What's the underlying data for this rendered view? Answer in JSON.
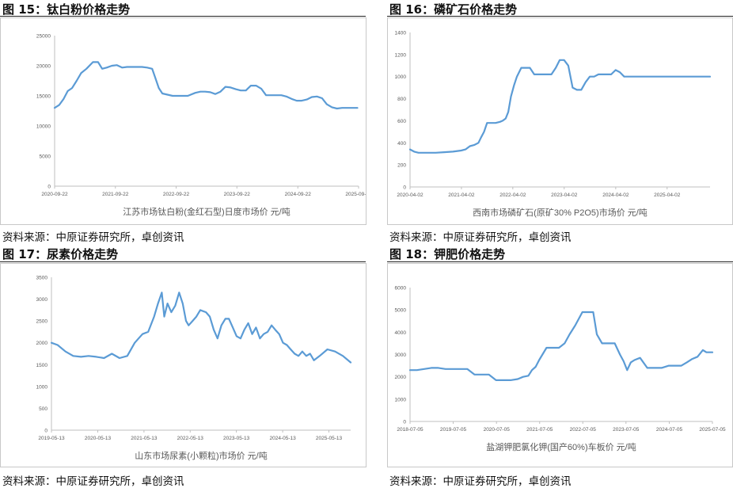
{
  "source_label": "资料来源：中原证券研究所，卓创资讯",
  "line_color": "#5b9bd5",
  "panels": [
    {
      "figure_title": "图 15：钛白粉价格走势",
      "chart_data": {
        "type": "line",
        "title": "",
        "xlabel": "",
        "ylabel": "",
        "ylim": [
          0,
          25000
        ],
        "yticks": [
          0,
          5000,
          10000,
          15000,
          20000,
          25000
        ],
        "xlim": [
          "2020-09-22",
          "2025-09-22"
        ],
        "xticks": [
          "2020-09-22",
          "2021-09-22",
          "2022-09-22",
          "2023-09-22",
          "2024-09-22",
          "2025-09-22"
        ],
        "grid": false,
        "legend": "bottom",
        "series": [
          {
            "name": "江苏市场钛白粉(金红石型)日度市场价 元/吨",
            "x": [
              "2020-09-22",
              "2020-10-20",
              "2020-11-15",
              "2020-12-10",
              "2021-01-05",
              "2021-02-01",
              "2021-03-01",
              "2021-04-01",
              "2021-05-10",
              "2021-06-10",
              "2021-07-05",
              "2021-08-01",
              "2021-09-01",
              "2021-10-01",
              "2021-11-01",
              "2021-12-01",
              "2022-01-01",
              "2022-02-01",
              "2022-03-01",
              "2022-04-01",
              "2022-05-01",
              "2022-05-20",
              "2022-06-10",
              "2022-07-01",
              "2022-08-01",
              "2022-09-01",
              "2022-10-01",
              "2022-11-01",
              "2022-12-01",
              "2023-01-15",
              "2023-02-15",
              "2023-03-15",
              "2023-04-15",
              "2023-05-15",
              "2023-06-15",
              "2023-07-15",
              "2023-08-15",
              "2023-09-15",
              "2023-10-15",
              "2023-11-15",
              "2023-12-15",
              "2024-01-15",
              "2024-02-15",
              "2024-03-15",
              "2024-04-15",
              "2024-05-15",
              "2024-06-15",
              "2024-07-15",
              "2024-08-15",
              "2024-09-15",
              "2024-10-15",
              "2024-11-15",
              "2024-12-15",
              "2025-01-15",
              "2025-02-15",
              "2025-03-15",
              "2025-04-15",
              "2025-05-15",
              "2025-06-15",
              "2025-07-15",
              "2025-08-15",
              "2025-09-15"
            ],
            "values": [
              13000,
              13500,
              14500,
              15800,
              16300,
              17500,
              18800,
              19500,
              20600,
              20600,
              19500,
              19700,
              20000,
              20100,
              19700,
              19800,
              19800,
              19800,
              19800,
              19700,
              19500,
              18000,
              16300,
              15400,
              15200,
              15000,
              15000,
              15000,
              15000,
              15500,
              15700,
              15700,
              15600,
              15300,
              15700,
              16500,
              16400,
              16100,
              15900,
              15900,
              16700,
              16700,
              16200,
              15100,
              15100,
              15100,
              15100,
              14900,
              14500,
              14200,
              14200,
              14400,
              14800,
              14900,
              14600,
              13600,
              13100,
              12900,
              13000,
              13000,
              13000,
              13000
            ]
          }
        ]
      }
    },
    {
      "figure_title": "图 16：磷矿石价格走势",
      "chart_data": {
        "type": "line",
        "title": "",
        "xlabel": "",
        "ylabel": "",
        "ylim": [
          0,
          1400
        ],
        "yticks": [
          0,
          200,
          400,
          600,
          800,
          1000,
          1200,
          1400
        ],
        "xlim": [
          "2020-04-02",
          "2026-02-01"
        ],
        "xticks": [
          "2020-04-02",
          "2021-04-02",
          "2022-04-02",
          "2023-04-02",
          "2024-04-02",
          "2025-04-02"
        ],
        "grid": false,
        "legend": "bottom",
        "series": [
          {
            "name": "西南市场磷矿石(原矿30% P2O5)市场价 元/吨",
            "x": [
              "2020-04-02",
              "2020-05-01",
              "2020-06-01",
              "2020-08-01",
              "2020-10-01",
              "2020-12-01",
              "2021-02-01",
              "2021-04-01",
              "2021-05-01",
              "2021-06-01",
              "2021-07-01",
              "2021-08-01",
              "2021-08-20",
              "2021-09-10",
              "2021-10-01",
              "2021-11-01",
              "2021-12-01",
              "2022-01-01",
              "2022-01-20",
              "2022-02-10",
              "2022-03-01",
              "2022-03-20",
              "2022-04-10",
              "2022-05-01",
              "2022-06-01",
              "2022-07-01",
              "2022-08-01",
              "2022-09-01",
              "2022-10-01",
              "2022-11-01",
              "2022-12-01",
              "2023-01-01",
              "2023-02-01",
              "2023-03-01",
              "2023-04-01",
              "2023-05-01",
              "2023-06-01",
              "2023-07-01",
              "2023-08-01",
              "2023-09-01",
              "2023-10-01",
              "2023-11-01",
              "2023-12-01",
              "2024-01-01",
              "2024-02-01",
              "2024-03-01",
              "2024-04-01",
              "2024-05-01",
              "2024-06-01",
              "2025-01-01",
              "2025-06-01",
              "2026-02-01"
            ],
            "values": [
              340,
              320,
              310,
              310,
              310,
              315,
              320,
              330,
              340,
              370,
              380,
              400,
              450,
              500,
              580,
              580,
              580,
              590,
              600,
              620,
              680,
              820,
              920,
              1000,
              1080,
              1080,
              1080,
              1020,
              1020,
              1020,
              1020,
              1020,
              1080,
              1150,
              1150,
              1100,
              900,
              880,
              880,
              950,
              1000,
              1000,
              1020,
              1020,
              1020,
              1020,
              1060,
              1040,
              1000,
              1000,
              1000,
              1000
            ]
          }
        ]
      }
    },
    {
      "figure_title": "图 17：尿素价格走势",
      "chart_data": {
        "type": "line",
        "title": "",
        "xlabel": "",
        "ylabel": "",
        "ylim": [
          0,
          3500
        ],
        "yticks": [
          0,
          500,
          1000,
          1500,
          2000,
          2500,
          3000,
          3500
        ],
        "xlim": [
          "2019-05-13",
          "2025-11-01"
        ],
        "xticks": [
          "2019-05-13",
          "2020-05-13",
          "2021-05-13",
          "2022-05-13",
          "2023-05-13",
          "2024-05-13",
          "2025-05-13"
        ],
        "grid": false,
        "legend": "bottom",
        "series": [
          {
            "name": "山东市场尿素(小颗粒)市场价 元/吨",
            "x": [
              "2019-05-13",
              "2019-07-01",
              "2019-09-01",
              "2019-11-01",
              "2020-01-01",
              "2020-03-01",
              "2020-05-01",
              "2020-07-01",
              "2020-09-01",
              "2020-11-01",
              "2021-01-01",
              "2021-03-01",
              "2021-05-01",
              "2021-06-15",
              "2021-08-01",
              "2021-09-01",
              "2021-10-01",
              "2021-10-20",
              "2021-11-15",
              "2021-12-15",
              "2022-01-15",
              "2022-02-15",
              "2022-03-15",
              "2022-04-10",
              "2022-05-01",
              "2022-06-01",
              "2022-07-01",
              "2022-08-01",
              "2022-09-15",
              "2022-10-15",
              "2022-11-15",
              "2022-12-15",
              "2023-01-15",
              "2023-02-15",
              "2023-03-15",
              "2023-04-15",
              "2023-05-15",
              "2023-06-15",
              "2023-07-15",
              "2023-08-15",
              "2023-09-15",
              "2023-10-15",
              "2023-11-15",
              "2023-12-15",
              "2024-01-15",
              "2024-02-15",
              "2024-03-15",
              "2024-04-15",
              "2024-05-15",
              "2024-06-15",
              "2024-07-15",
              "2024-08-15",
              "2024-09-15",
              "2024-10-15",
              "2024-11-15",
              "2024-12-15",
              "2025-01-15",
              "2025-03-01",
              "2025-05-01",
              "2025-07-01",
              "2025-09-01",
              "2025-11-01"
            ],
            "values": [
              2000,
              1950,
              1800,
              1700,
              1680,
              1700,
              1680,
              1650,
              1750,
              1650,
              1700,
              2000,
              2200,
              2250,
              2600,
              2900,
              3150,
              2600,
              2900,
              2700,
              2850,
              3150,
              2900,
              2500,
              2400,
              2500,
              2600,
              2750,
              2700,
              2600,
              2300,
              2100,
              2400,
              2550,
              2550,
              2350,
              2150,
              2100,
              2300,
              2450,
              2200,
              2350,
              2100,
              2200,
              2250,
              2400,
              2300,
              2200,
              2000,
              1950,
              1850,
              1750,
              1700,
              1800,
              1700,
              1750,
              1600,
              1700,
              1850,
              1800,
              1700,
              1550
            ]
          }
        ]
      }
    },
    {
      "figure_title": "图 18：钾肥价格走势",
      "chart_data": {
        "type": "line",
        "title": "",
        "xlabel": "",
        "ylabel": "",
        "ylim": [
          0,
          6000
        ],
        "yticks": [
          0,
          1000,
          2000,
          3000,
          4000,
          5000,
          6000
        ],
        "xlim": [
          "2018-07-05",
          "2025-07-05"
        ],
        "xticks": [
          "2018-07-05",
          "2019-07-05",
          "2020-07-05",
          "2021-07-05",
          "2022-07-05",
          "2023-07-05",
          "2024-07-05",
          "2025-07-05"
        ],
        "grid": false,
        "legend": "bottom",
        "series": [
          {
            "name": "盐湖钾肥氯化钾(国产60%)车板价 元/吨",
            "x": [
              "2018-07-05",
              "2018-09-01",
              "2018-11-01",
              "2019-01-01",
              "2019-03-01",
              "2019-05-01",
              "2019-07-01",
              "2019-09-01",
              "2019-11-01",
              "2020-01-01",
              "2020-03-01",
              "2020-05-01",
              "2020-07-01",
              "2020-09-01",
              "2020-11-01",
              "2021-01-01",
              "2021-02-15",
              "2021-04-01",
              "2021-05-01",
              "2021-06-01",
              "2021-07-01",
              "2021-09-01",
              "2021-11-01",
              "2021-12-15",
              "2022-02-01",
              "2022-03-15",
              "2022-05-01",
              "2022-07-01",
              "2022-09-01",
              "2022-10-01",
              "2022-11-01",
              "2022-12-15",
              "2023-02-01",
              "2023-04-01",
              "2023-05-15",
              "2023-06-15",
              "2023-07-15",
              "2023-08-15",
              "2023-09-15",
              "2023-11-01",
              "2024-01-01",
              "2024-03-01",
              "2024-05-01",
              "2024-07-01",
              "2024-09-01",
              "2024-10-15",
              "2024-12-01",
              "2025-01-15",
              "2025-03-01",
              "2025-04-15",
              "2025-05-15",
              "2025-07-05"
            ],
            "values": [
              2300,
              2300,
              2350,
              2400,
              2400,
              2350,
              2350,
              2350,
              2350,
              2100,
              2100,
              2100,
              1850,
              1850,
              1850,
              1900,
              2000,
              2050,
              2300,
              2450,
              2750,
              3300,
              3300,
              3300,
              3500,
              3900,
              4300,
              4900,
              4900,
              4900,
              3900,
              3500,
              3500,
              3500,
              3000,
              2700,
              2300,
              2650,
              2750,
              2850,
              2400,
              2400,
              2400,
              2500,
              2500,
              2500,
              2650,
              2800,
              2900,
              3200,
              3100,
              3100
            ]
          }
        ]
      }
    }
  ]
}
